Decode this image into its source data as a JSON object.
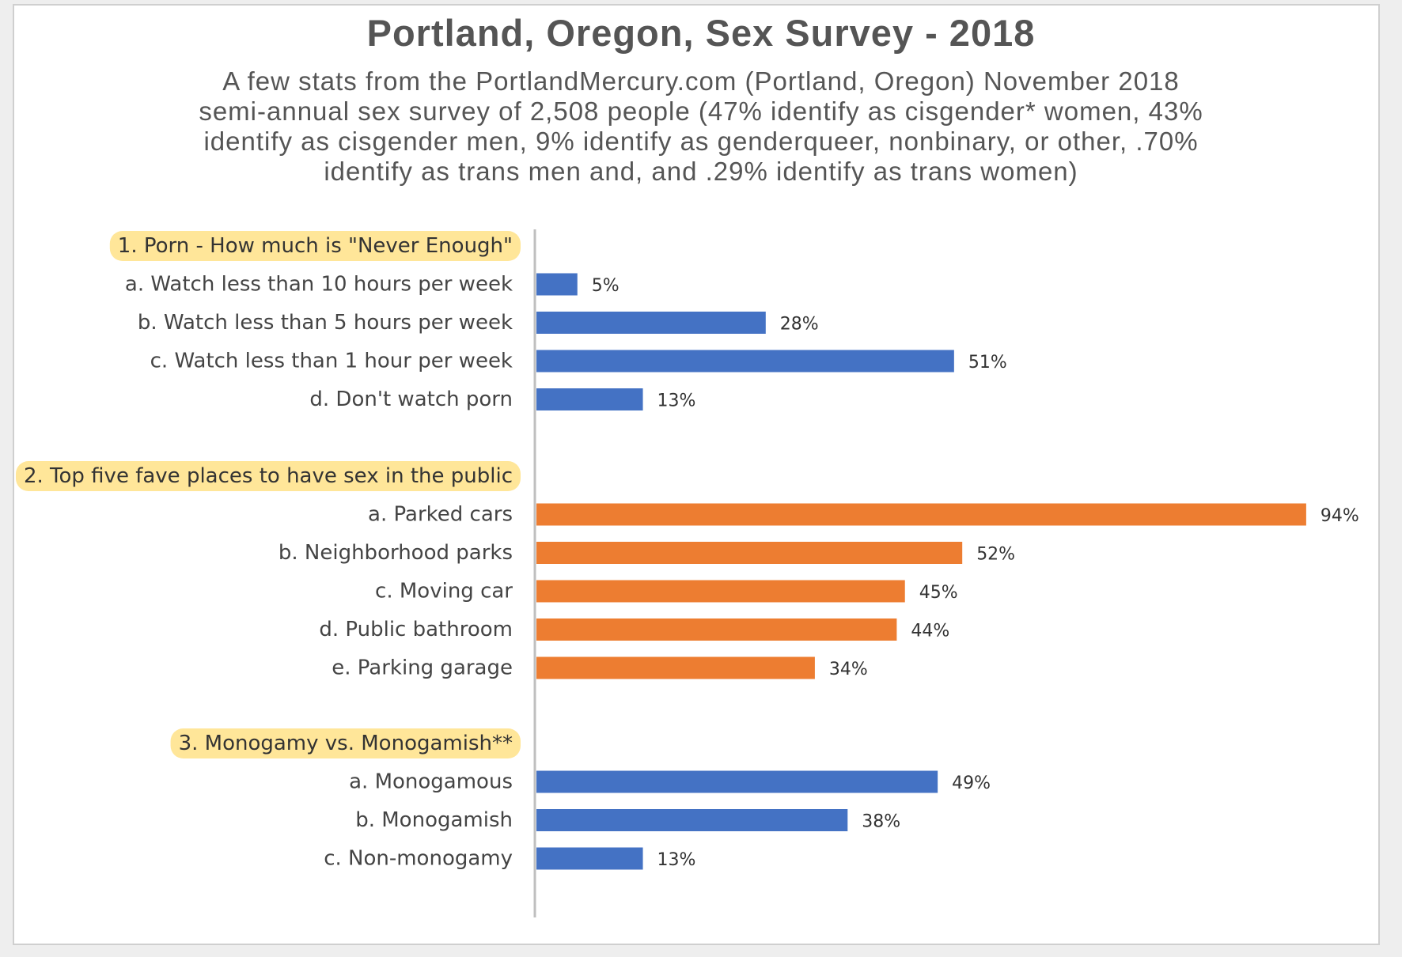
{
  "chart_data": {
    "type": "bar",
    "orientation": "horizontal",
    "title": "Portland, Oregon, Sex Survey - 2018",
    "subtitle_lines": [
      "A few stats from the PortlandMercury.com (Portland, Oregon) November 2018",
      "semi-annual sex survey of 2,508 people (47% identify as cisgender* women, 43%",
      "identify as cisgender men, 9% identify as genderqueer, nonbinary, or other, .70%",
      "identify as trans men and, and .29% identify as trans women)"
    ],
    "xlim": [
      0,
      100
    ],
    "grid": false,
    "colors": {
      "blue": "#4472C4",
      "orange": "#ED7D31",
      "highlight": "#FFE699",
      "axis": "#BFBFBF"
    },
    "groups": [
      {
        "label": "1. Porn - How much is \"Never Enough\"",
        "color": "#4472C4",
        "categories": [
          "a. Watch less than 10 hours per week",
          "b. Watch less than 5 hours per week",
          "c. Watch less than 1 hour per week",
          "d. Don't watch porn"
        ],
        "values": [
          5,
          28,
          51,
          13
        ],
        "value_labels": [
          "5%",
          "28%",
          "51%",
          "13%"
        ]
      },
      {
        "label": "2. Top five fave places to have sex in the public",
        "color": "#ED7D31",
        "categories": [
          "a. Parked cars",
          "b. Neighborhood parks",
          "c. Moving car",
          "d. Public bathroom",
          "e. Parking garage"
        ],
        "values": [
          94,
          52,
          45,
          44,
          34
        ],
        "value_labels": [
          "94%",
          "52%",
          "45%",
          "44%",
          "34%"
        ]
      },
      {
        "label": "3. Monogamy vs. Monogamish**",
        "color": "#4472C4",
        "categories": [
          "a. Monogamous",
          "b. Monogamish",
          "c. Non-monogamy"
        ],
        "values": [
          49,
          38,
          13
        ],
        "value_labels": [
          "49%",
          "38%",
          "13%"
        ]
      }
    ]
  }
}
